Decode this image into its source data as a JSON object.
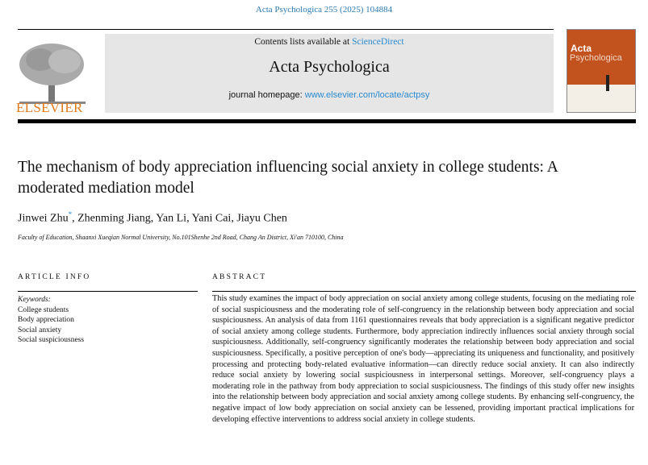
{
  "running_header": "Acta Psychologica 255 (2025) 104884",
  "publisher": "ELSEVIER",
  "banner": {
    "contents_prefix": "Contents lists available at ",
    "contents_link": "ScienceDirect",
    "journal_title": "Acta Psychologica",
    "homepage_prefix": "journal homepage: ",
    "homepage_link": "www.elsevier.com/locate/actpsy"
  },
  "cover": {
    "line1": "Acta",
    "line2": "Psychologica",
    "color": "#c2521e"
  },
  "title": "The mechanism of body appreciation influencing social anxiety in college students: A moderated mediation model",
  "authors": [
    {
      "name": "Jinwei Zhu",
      "mark": "*"
    },
    {
      "name": "Zhenming Jiang"
    },
    {
      "name": "Yan Li"
    },
    {
      "name": "Yani Cai"
    },
    {
      "name": "Jiayu Chen"
    }
  ],
  "affiliation": "Faculty of Education, Shaanxi Xueqian Normal University, No.101Shenhe 2nd Road, Chang An District, Xi'an 710100, China",
  "article_info": {
    "heading": "ARTICLE INFO",
    "keywords_label": "Keywords:",
    "keywords": [
      "College students",
      "Body appreciation",
      "Social anxiety",
      "Social suspiciousness"
    ]
  },
  "abstract": {
    "heading": "ABSTRACT",
    "text": "This study examines the impact of body appreciation on social anxiety among college students, focusing on the mediating role of social suspiciousness and the moderating role of self-congruency in the relationship between body appreciation and social suspiciousness. An analysis of data from 1161 questionnaires reveals that body appreciation is a significant negative predictor of social anxiety among college students. Furthermore, body appreciation indirectly influences social anxiety through social suspiciousness. Additionally, self-congruency significantly moderates the relationship between body appreciation and social suspiciousness. Specifically, a positive perception of one's body—appreciating its uniqueness and functionality, and positively processing and protecting body-related evaluative information—can directly reduce social anxiety. It can also indirectly reduce social anxiety by lowering social suspiciousness in interpersonal settings. Moreover, self-congruency plays a moderating role in the pathway from body appreciation to social suspiciousness. The findings of this study offer new insights into the relationship between body appreciation and social anxiety among college students. By enhancing self-congruency, the negative impact of low body appreciation on social anxiety can be lessened, providing important practical implications for developing effective interventions to address social anxiety in college students."
  }
}
